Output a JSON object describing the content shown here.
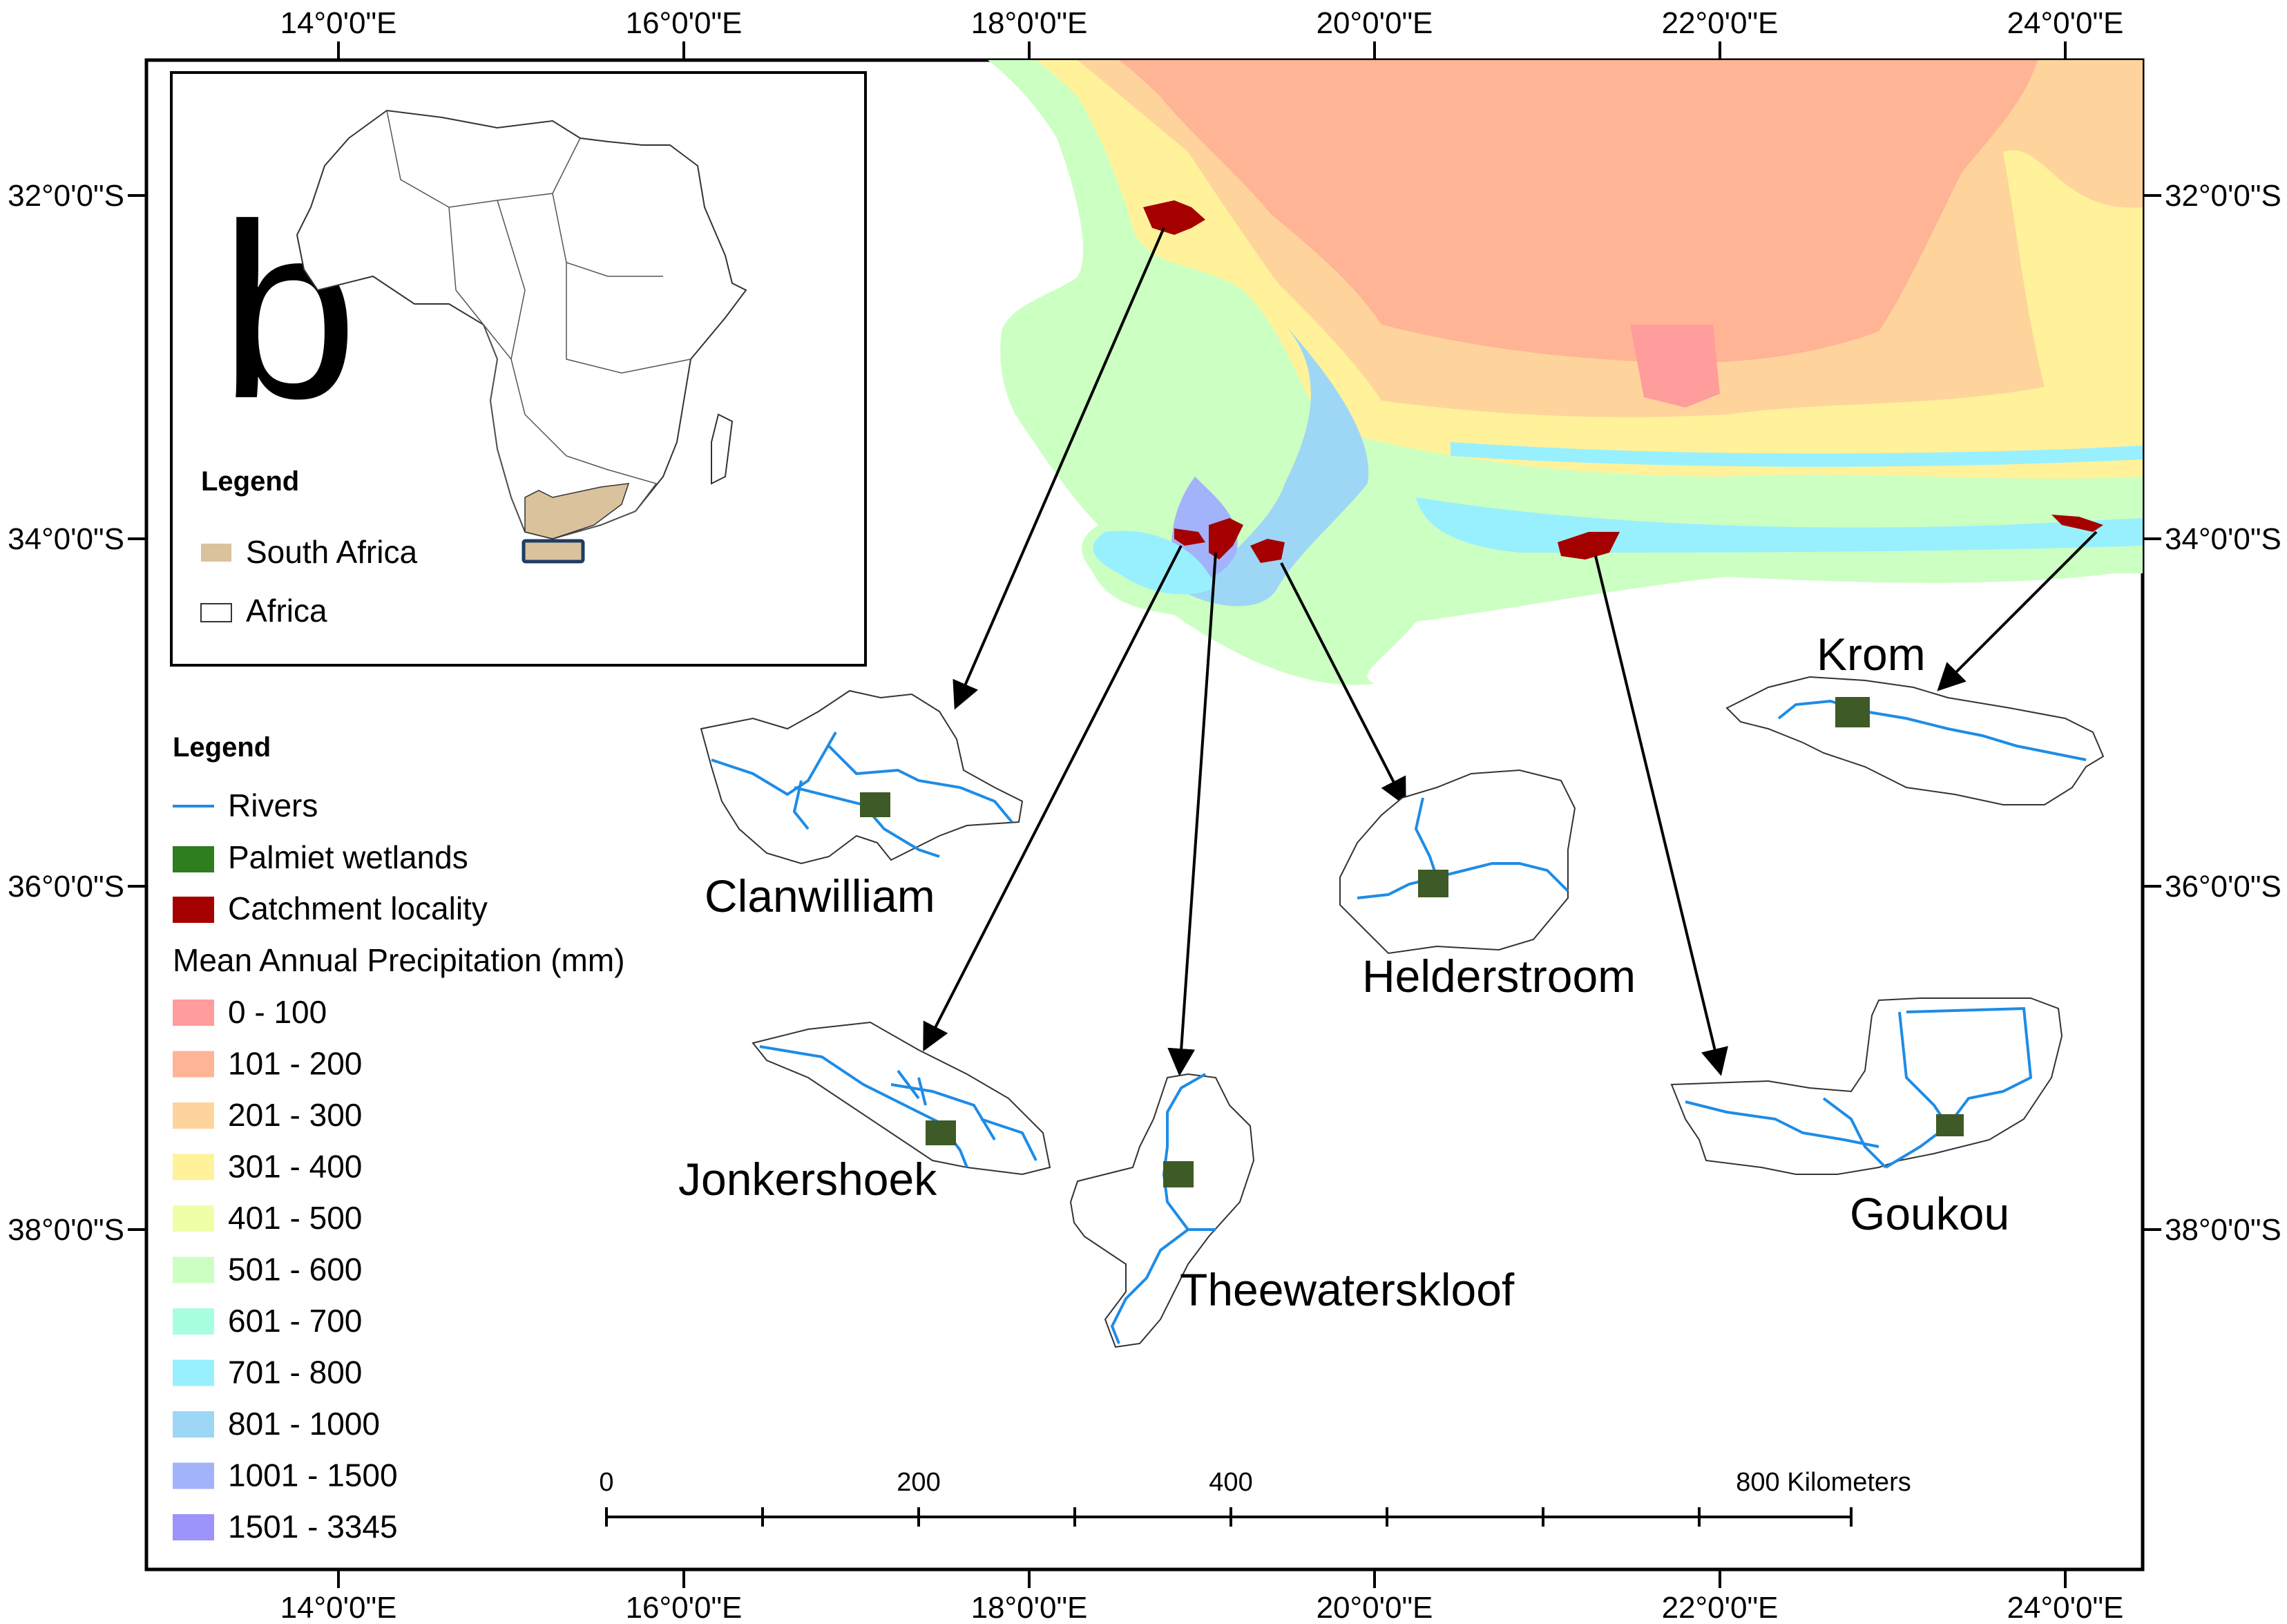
{
  "map": {
    "axes": {
      "top_labels": [
        "14°0'0\"E",
        "16°0'0\"E",
        "18°0'0\"E",
        "20°0'0\"E",
        "22°0'0\"E",
        "24°0'0\"E"
      ],
      "bottom_labels": [
        "14°0'0\"E",
        "16°0'0\"E",
        "18°0'0\"E",
        "20°0'0\"E",
        "22°0'0\"E",
        "24°0'0\"E"
      ],
      "left_labels": [
        "32°0'0\"S",
        "34°0'0\"S",
        "36°0'0\"S",
        "38°0'0\"S"
      ],
      "right_labels": [
        "32°0'0\"S",
        "34°0'0\"S",
        "36°0'0\"S",
        "38°0'0\"S"
      ]
    },
    "inset": {
      "panel_letter": "b",
      "legend_title": "Legend",
      "items": [
        {
          "label": "South Africa",
          "color": "#d9c29c"
        },
        {
          "label": "Africa",
          "color": "#ffffff"
        }
      ]
    },
    "legend": {
      "title": "Legend",
      "symbols": [
        {
          "label": "Rivers",
          "color": "#1e8ce6"
        },
        {
          "label": "Palmiet wetlands",
          "color": "#2e7d1f"
        },
        {
          "label": "Catchment locality",
          "color": "#a50000"
        }
      ],
      "precip_title": "Mean Annual Precipitation (mm)",
      "precip_classes": [
        {
          "label": "0 - 100",
          "color": "#ff9c9c"
        },
        {
          "label": "101 - 200",
          "color": "#ffb496"
        },
        {
          "label": "201 - 300",
          "color": "#ffd49c"
        },
        {
          "label": "301 - 400",
          "color": "#fff29a"
        },
        {
          "label": "401 - 500",
          "color": "#eeffa8"
        },
        {
          "label": "501 - 600",
          "color": "#ccffc2"
        },
        {
          "label": "601 - 700",
          "color": "#a8ffe0"
        },
        {
          "label": "701 - 800",
          "color": "#98f0ff"
        },
        {
          "label": "801 - 1000",
          "color": "#9ed6f6"
        },
        {
          "label": "1001 - 1500",
          "color": "#a2b2fb"
        },
        {
          "label": "1501 - 3345",
          "color": "#9c94f8"
        }
      ]
    },
    "catchments": [
      {
        "name": "Clanwilliam"
      },
      {
        "name": "Jonkershoek"
      },
      {
        "name": "Theewaterskloof"
      },
      {
        "name": "Helderstroom"
      },
      {
        "name": "Goukou"
      },
      {
        "name": "Krom"
      }
    ],
    "scale_bar": {
      "labels": [
        "0",
        "200",
        "400",
        "800 Kilometers"
      ]
    }
  }
}
